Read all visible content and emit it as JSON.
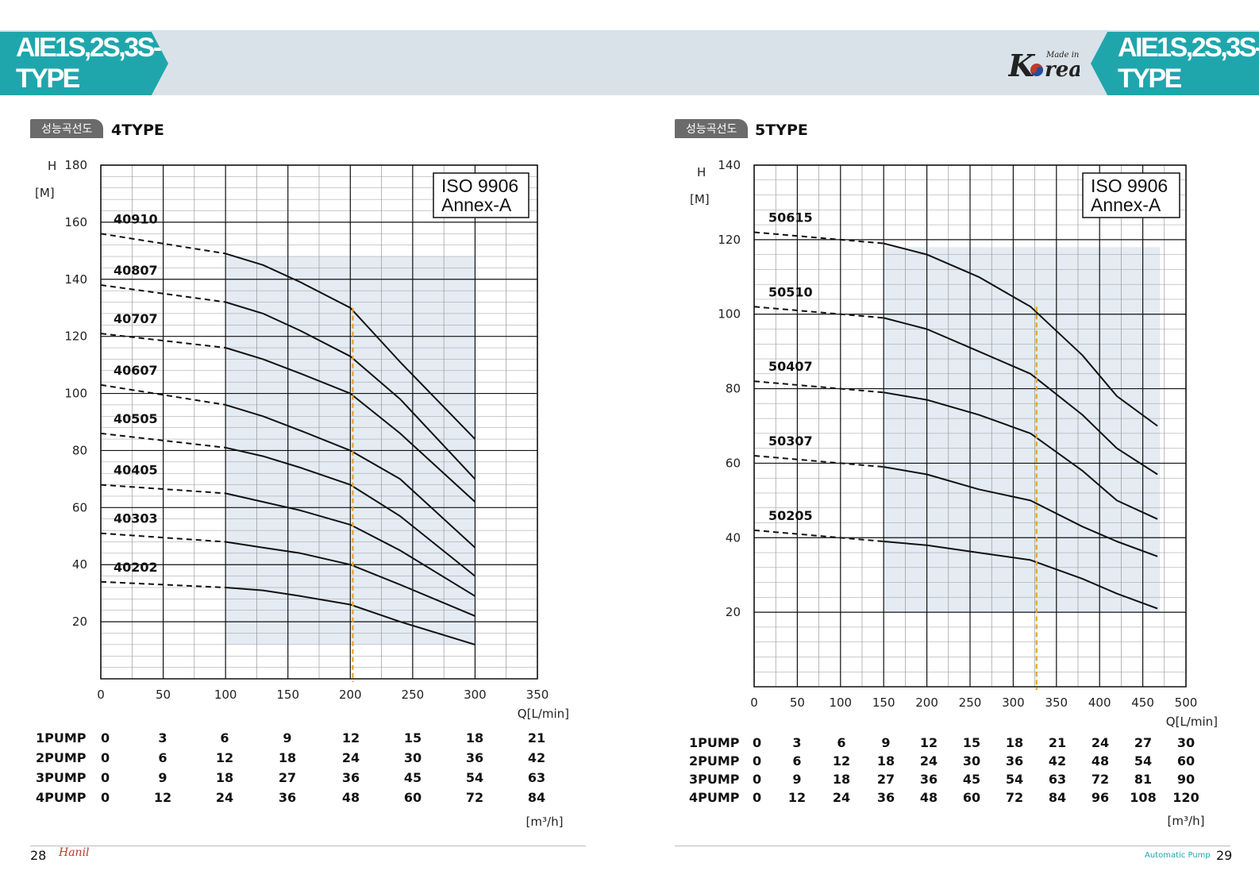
{
  "header": {
    "title_left": "AIE1S,2S,3S-TYPE",
    "title_right": "AIE1S,2S,3S-TYPE",
    "logo_small": "Made in",
    "logo_big_k": "K",
    "logo_big_rest": "rea",
    "accent": "#1fa6ac",
    "band": "#d9e2e8"
  },
  "footer": {
    "page_left": "28",
    "page_right": "29",
    "brand": "Hanil",
    "right_text": "Automatic Pump"
  },
  "chart_data": [
    {
      "type": "line",
      "tag": "성능곡선도",
      "title": "4TYPE",
      "ylabel": "H",
      "yunit": "[M]",
      "xlabel": "Q[L/min]",
      "xlim": [
        0,
        350
      ],
      "ylim": [
        0,
        180
      ],
      "xticks": [
        0,
        50,
        100,
        150,
        200,
        250,
        300,
        350
      ],
      "yticks": [
        20,
        40,
        60,
        80,
        100,
        120,
        140,
        160,
        180
      ],
      "grid": true,
      "badge": [
        "ISO 9906",
        "Annex-A"
      ],
      "operating_range": {
        "x": [
          100,
          300
        ],
        "y": [
          12,
          148
        ]
      },
      "duty_point_x": 202,
      "series": [
        {
          "name": "40910",
          "dashed": [
            [
              0,
              156
            ],
            [
              100,
              149
            ]
          ],
          "solid": [
            [
              100,
              149
            ],
            [
              130,
              145
            ],
            [
              160,
              139
            ],
            [
              200,
              130
            ],
            [
              240,
              111
            ],
            [
              300,
              84
            ]
          ]
        },
        {
          "name": "40807",
          "dashed": [
            [
              0,
              138
            ],
            [
              100,
              132
            ]
          ],
          "solid": [
            [
              100,
              132
            ],
            [
              130,
              128
            ],
            [
              160,
              122
            ],
            [
              200,
              113
            ],
            [
              240,
              98
            ],
            [
              300,
              70
            ]
          ]
        },
        {
          "name": "40707",
          "dashed": [
            [
              0,
              121
            ],
            [
              100,
              116
            ]
          ],
          "solid": [
            [
              100,
              116
            ],
            [
              130,
              112
            ],
            [
              160,
              107
            ],
            [
              200,
              100
            ],
            [
              240,
              86
            ],
            [
              300,
              62
            ]
          ]
        },
        {
          "name": "40607",
          "dashed": [
            [
              0,
              103
            ],
            [
              100,
              96
            ]
          ],
          "solid": [
            [
              100,
              96
            ],
            [
              130,
              92
            ],
            [
              160,
              87
            ],
            [
              200,
              80
            ],
            [
              240,
              70
            ],
            [
              300,
              46
            ]
          ]
        },
        {
          "name": "40505",
          "dashed": [
            [
              0,
              86
            ],
            [
              100,
              81
            ]
          ],
          "solid": [
            [
              100,
              81
            ],
            [
              130,
              78
            ],
            [
              160,
              74
            ],
            [
              200,
              68
            ],
            [
              240,
              57
            ],
            [
              300,
              36
            ]
          ]
        },
        {
          "name": "40405",
          "dashed": [
            [
              0,
              68
            ],
            [
              100,
              65
            ]
          ],
          "solid": [
            [
              100,
              65
            ],
            [
              130,
              62
            ],
            [
              160,
              59
            ],
            [
              200,
              54
            ],
            [
              240,
              45
            ],
            [
              300,
              29
            ]
          ]
        },
        {
          "name": "40303",
          "dashed": [
            [
              0,
              51
            ],
            [
              100,
              48
            ]
          ],
          "solid": [
            [
              100,
              48
            ],
            [
              130,
              46
            ],
            [
              160,
              44
            ],
            [
              200,
              40
            ],
            [
              240,
              33
            ],
            [
              300,
              22
            ]
          ]
        },
        {
          "name": "40202",
          "dashed": [
            [
              0,
              34
            ],
            [
              100,
              32
            ]
          ],
          "solid": [
            [
              100,
              32
            ],
            [
              130,
              31
            ],
            [
              160,
              29
            ],
            [
              200,
              26
            ],
            [
              240,
              20
            ],
            [
              300,
              12
            ]
          ]
        }
      ],
      "pump_table": {
        "unit": "[m³/h]",
        "rows": [
          {
            "label": "1PUMP",
            "values": [
              "0",
              "3",
              "6",
              "9",
              "12",
              "15",
              "18",
              "21"
            ]
          },
          {
            "label": "2PUMP",
            "values": [
              "0",
              "6",
              "12",
              "18",
              "24",
              "30",
              "36",
              "42"
            ]
          },
          {
            "label": "3PUMP",
            "values": [
              "0",
              "9",
              "18",
              "27",
              "36",
              "45",
              "54",
              "63"
            ]
          },
          {
            "label": "4PUMP",
            "values": [
              "0",
              "12",
              "24",
              "36",
              "48",
              "60",
              "72",
              "84"
            ]
          }
        ]
      }
    },
    {
      "type": "line",
      "tag": "성능곡선도",
      "title": "5TYPE",
      "ylabel": "H",
      "yunit": "[M]",
      "xlabel": "Q[L/min]",
      "xlim": [
        0,
        500
      ],
      "ylim": [
        0,
        140
      ],
      "xticks": [
        0,
        50,
        100,
        150,
        200,
        250,
        300,
        350,
        400,
        450,
        500
      ],
      "yticks": [
        20,
        40,
        60,
        80,
        100,
        120,
        140
      ],
      "grid": true,
      "badge": [
        "ISO 9906",
        "Annex-A"
      ],
      "operating_range": {
        "x": [
          150,
          470
        ],
        "y": [
          20,
          118
        ]
      },
      "duty_point_x": 327,
      "series": [
        {
          "name": "50615",
          "dashed": [
            [
              0,
              122
            ],
            [
              150,
              119
            ]
          ],
          "solid": [
            [
              150,
              119
            ],
            [
              200,
              116
            ],
            [
              260,
              110
            ],
            [
              320,
              102
            ],
            [
              380,
              89
            ],
            [
              420,
              78
            ],
            [
              467,
              70
            ]
          ]
        },
        {
          "name": "50510",
          "dashed": [
            [
              0,
              102
            ],
            [
              150,
              99
            ]
          ],
          "solid": [
            [
              150,
              99
            ],
            [
              200,
              96
            ],
            [
              260,
              90
            ],
            [
              320,
              84
            ],
            [
              380,
              73
            ],
            [
              420,
              64
            ],
            [
              467,
              57
            ]
          ]
        },
        {
          "name": "50407",
          "dashed": [
            [
              0,
              82
            ],
            [
              150,
              79
            ]
          ],
          "solid": [
            [
              150,
              79
            ],
            [
              200,
              77
            ],
            [
              260,
              73
            ],
            [
              320,
              68
            ],
            [
              380,
              58
            ],
            [
              420,
              50
            ],
            [
              467,
              45
            ]
          ]
        },
        {
          "name": "50307",
          "dashed": [
            [
              0,
              62
            ],
            [
              150,
              59
            ]
          ],
          "solid": [
            [
              150,
              59
            ],
            [
              200,
              57
            ],
            [
              260,
              53
            ],
            [
              320,
              50
            ],
            [
              380,
              43
            ],
            [
              420,
              39
            ],
            [
              467,
              35
            ]
          ]
        },
        {
          "name": "50205",
          "dashed": [
            [
              0,
              42
            ],
            [
              150,
              39
            ]
          ],
          "solid": [
            [
              150,
              39
            ],
            [
              200,
              38
            ],
            [
              260,
              36
            ],
            [
              320,
              34
            ],
            [
              380,
              29
            ],
            [
              420,
              25
            ],
            [
              467,
              21
            ]
          ]
        }
      ],
      "pump_table": {
        "unit": "[m³/h]",
        "rows": [
          {
            "label": "1PUMP",
            "values": [
              "0",
              "3",
              "6",
              "9",
              "12",
              "15",
              "18",
              "21",
              "24",
              "27",
              "30"
            ]
          },
          {
            "label": "2PUMP",
            "values": [
              "0",
              "6",
              "12",
              "18",
              "24",
              "30",
              "36",
              "42",
              "48",
              "54",
              "60"
            ]
          },
          {
            "label": "3PUMP",
            "values": [
              "0",
              "9",
              "18",
              "27",
              "36",
              "45",
              "54",
              "63",
              "72",
              "81",
              "90"
            ]
          },
          {
            "label": "4PUMP",
            "values": [
              "0",
              "12",
              "24",
              "36",
              "48",
              "60",
              "72",
              "84",
              "96",
              "108",
              "120"
            ]
          }
        ]
      }
    }
  ]
}
